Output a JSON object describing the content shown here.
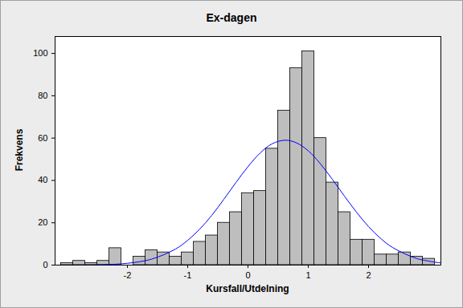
{
  "chart_data": {
    "type": "histogram",
    "title": "Ex-dagen",
    "x_label": "Kursfall/Utdelning",
    "y_label": "Frekvens",
    "bins": [
      -3.1,
      -2.9,
      -2.7,
      -2.5,
      -2.3,
      -2.1,
      -1.9,
      -1.7,
      -1.5,
      -1.3,
      -1.1,
      -0.9,
      -0.7,
      -0.5,
      -0.3,
      -0.1,
      0.1,
      0.3,
      0.5,
      0.7,
      0.9,
      1.1,
      1.3,
      1.5,
      1.7,
      1.9,
      2.1,
      2.3,
      2.5,
      2.7,
      2.9,
      3.1
    ],
    "values": [
      1,
      2,
      1,
      2,
      8,
      0,
      4,
      7,
      6,
      4,
      6,
      11,
      14,
      20,
      25,
      34,
      35,
      55,
      73,
      93,
      101,
      60,
      39,
      25,
      12,
      12,
      5,
      5,
      6,
      4,
      3
    ],
    "color": "#bebebe",
    "curve": {
      "type": "line",
      "color": "#0000ff",
      "x": [
        -3.2,
        -2.8,
        -2.4,
        -2.0,
        -1.6,
        -1.2,
        -1.0,
        -0.8,
        -0.6,
        -0.4,
        -0.2,
        0,
        0.2,
        0.4,
        0.62,
        0.8,
        1.0,
        1.2,
        1.4,
        1.6,
        1.8,
        2.0,
        2.2,
        2.4,
        2.8,
        3.2
      ],
      "values": [
        0.01,
        0.04,
        0.21,
        0.85,
        2.8,
        7.6,
        11.7,
        17.0,
        23.5,
        31.1,
        39.0,
        46.5,
        52.9,
        57.3,
        59,
        57.8,
        54.0,
        47.9,
        40.5,
        32.6,
        25.0,
        18.2,
        12.6,
        8.3,
        3.1,
        1.0
      ]
    },
    "xlim": [
      -3.2,
      3.2
    ],
    "xticks": [
      -2,
      -1,
      0,
      1,
      2
    ],
    "ylim": [
      0,
      108
    ],
    "yticks": [
      0,
      20,
      40,
      60,
      80,
      100
    ],
    "grid": false
  }
}
